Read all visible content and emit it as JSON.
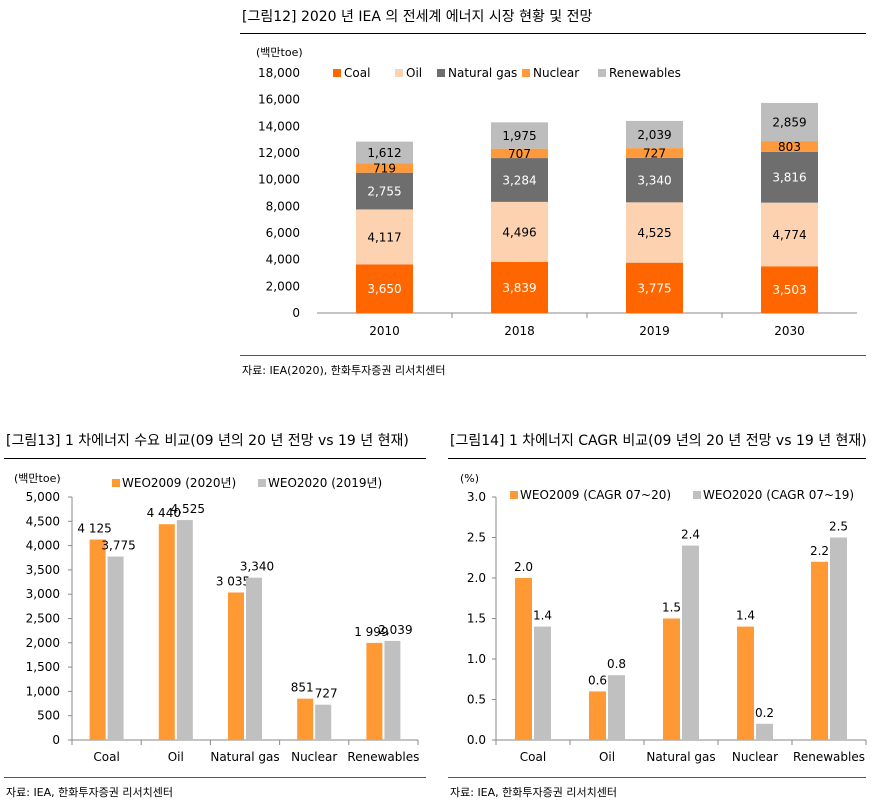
{
  "fig12": {
    "title": "[그림12]  2020 년 IEA 의 전세계 에너지 시장 현황 및 전망",
    "source": "자료: IEA(2020), 한화투자증권 리서치센터"
  },
  "fig13": {
    "title": "[그림13]  1 차에너지 수요 비교(09 년의 20 년 전망 vs 19 년 현재)",
    "source": "자료: IEA, 한화투자증권 리서치센터"
  },
  "fig14": {
    "title": "[그림14]   1 차에너지 CAGR 비교(09 년의 20 년 전망 vs 19 년 현재)",
    "source": "자료: IEA, 한화투자증권 리서치센터"
  },
  "colors": {
    "coal": "#ff6600",
    "oil": "#fcd2b0",
    "gas": "#6e6e6e",
    "nuclear": "#ff9a3c",
    "renew": "#bdbdbd",
    "weo2009": "#ff9933",
    "weo2020": "#c0c0c0"
  },
  "chart_data": [
    {
      "id": "fig12",
      "type": "bar",
      "stacked": true,
      "ylabel": "(백만toe)",
      "ylim": [
        0,
        18000
      ],
      "yticks": [
        "0",
        "2,000",
        "4,000",
        "6,000",
        "8,000",
        "10,000",
        "12,000",
        "14,000",
        "16,000",
        "18,000"
      ],
      "categories": [
        "2010",
        "2018",
        "2019",
        "2030"
      ],
      "series": [
        {
          "name": "Coal",
          "values": [
            3650,
            3839,
            3775,
            3503
          ],
          "labels": [
            "3,650",
            "3,839",
            "3,775",
            "3,503"
          ]
        },
        {
          "name": "Oil",
          "values": [
            4117,
            4496,
            4525,
            4774
          ],
          "labels": [
            "4,117",
            "4,496",
            "4,525",
            "4,774"
          ]
        },
        {
          "name": "Natural gas",
          "values": [
            2755,
            3284,
            3340,
            3816
          ],
          "labels": [
            "2,755",
            "3,284",
            "3,340",
            "3,816"
          ]
        },
        {
          "name": "Nuclear",
          "values": [
            719,
            707,
            727,
            803
          ],
          "labels": [
            "719",
            "707",
            "727",
            "803"
          ]
        },
        {
          "name": "Renewables",
          "values": [
            1612,
            1975,
            2039,
            2859
          ],
          "labels": [
            "1,612",
            "1,975",
            "2,039",
            "2,859"
          ]
        }
      ],
      "legend": "top"
    },
    {
      "id": "fig13",
      "type": "bar",
      "ylabel": "(백만toe)",
      "ylim": [
        0,
        5000
      ],
      "yticks": [
        "0",
        "500",
        "1,000",
        "1,500",
        "2,000",
        "2,500",
        "3,000",
        "3,500",
        "4,000",
        "4,500",
        "5,000"
      ],
      "categories": [
        "Coal",
        "Oil",
        "Natural gas",
        "Nuclear",
        "Renewables"
      ],
      "series": [
        {
          "name": "WEO2009   (2020년)",
          "values": [
            4125,
            4440,
            3035,
            851,
            1999
          ],
          "labels": [
            "4 125",
            "4 440",
            "3 035",
            "851",
            "1 999"
          ]
        },
        {
          "name": "WEO2020   (2019년)",
          "values": [
            3775,
            4525,
            3340,
            727,
            2039
          ],
          "labels": [
            "3,775",
            "4,525",
            "3,340",
            "727",
            "2,039"
          ]
        }
      ],
      "legend": "top"
    },
    {
      "id": "fig14",
      "type": "bar",
      "ylabel": "(%)",
      "ylim": [
        0,
        3.0
      ],
      "yticks": [
        "0.0",
        "0.5",
        "1.0",
        "1.5",
        "2.0",
        "2.5",
        "3.0"
      ],
      "categories": [
        "Coal",
        "Oil",
        "Natural gas",
        "Nuclear",
        "Renewables"
      ],
      "series": [
        {
          "name": "WEO2009 (CAGR 07~20)",
          "values": [
            2.0,
            0.6,
            1.5,
            1.4,
            2.2
          ],
          "labels": [
            "2.0",
            "0.6",
            "1.5",
            "1.4",
            "2.2"
          ]
        },
        {
          "name": "WEO2020 (CAGR 07~19)",
          "values": [
            1.4,
            0.8,
            2.4,
            0.2,
            2.5
          ],
          "labels": [
            "1.4",
            "0.8",
            "2.4",
            "0.2",
            "2.5"
          ]
        }
      ],
      "legend": "top"
    }
  ]
}
